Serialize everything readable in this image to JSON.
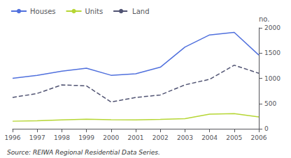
{
  "chart_data": {
    "type": "line",
    "x": [
      1996,
      1997,
      1998,
      1999,
      2000,
      2001,
      2002,
      2003,
      2004,
      2005,
      2006
    ],
    "series": [
      {
        "name": "Houses",
        "values": [
          1000,
          1060,
          1140,
          1200,
          1060,
          1090,
          1220,
          1620,
          1860,
          1910,
          1460
        ],
        "line_style": "solid"
      },
      {
        "name": "Units",
        "values": [
          150,
          160,
          175,
          190,
          180,
          175,
          185,
          200,
          290,
          300,
          235
        ],
        "line_style": "solid"
      },
      {
        "name": "Land",
        "values": [
          620,
          700,
          870,
          850,
          530,
          620,
          670,
          870,
          980,
          1260,
          1100
        ],
        "line_style": "dashed"
      }
    ],
    "xlim": [
      1996,
      2006
    ],
    "xticks": [
      1996,
      1997,
      1998,
      1999,
      2000,
      2001,
      2002,
      2003,
      2004,
      2005,
      2006
    ],
    "ylim": [
      0,
      2000
    ],
    "yticks": [
      0,
      500,
      1000,
      1500,
      2000
    ],
    "ylabel": "no.",
    "annotations": [
      "Source: REIWA Regional Residential Data Series."
    ],
    "grid": false,
    "legend": "upper left"
  }
}
